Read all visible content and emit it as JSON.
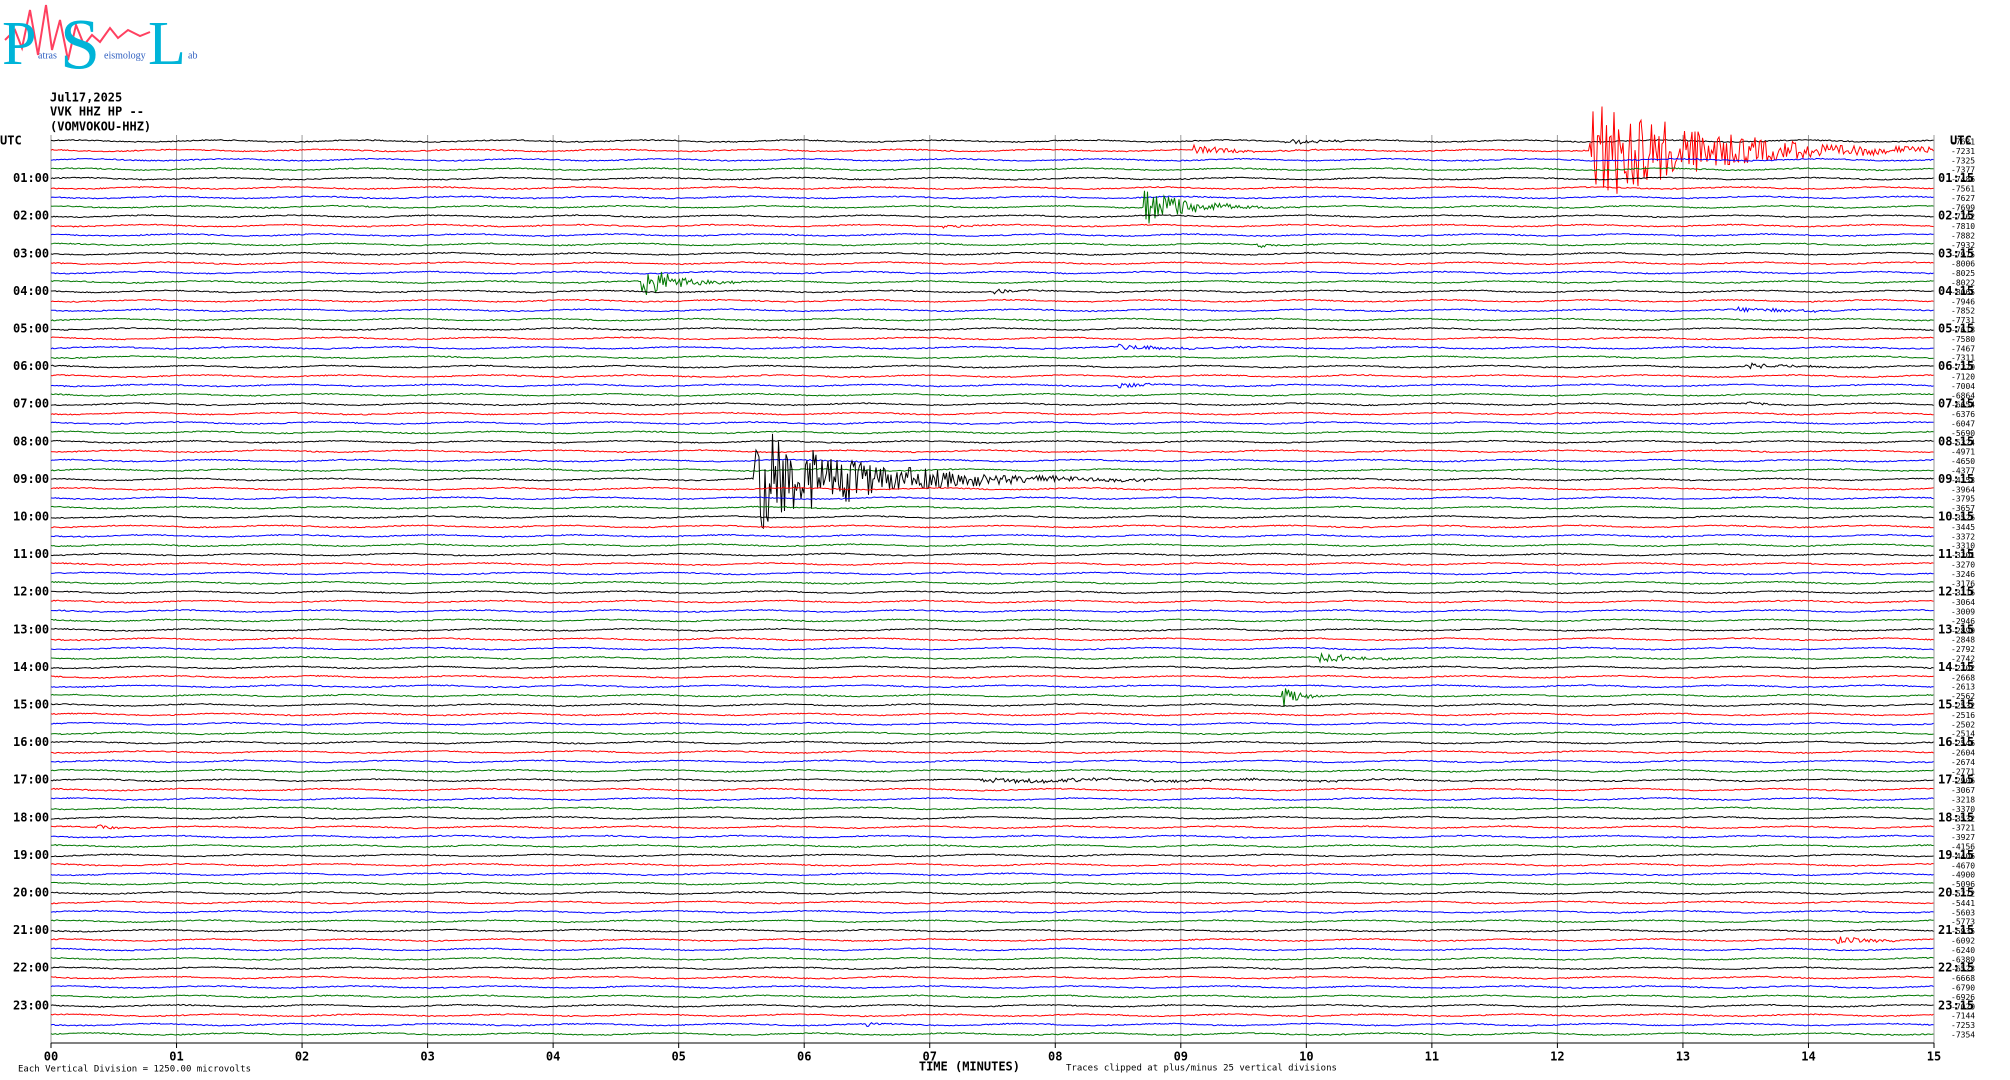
{
  "chart_data": {
    "type": "helicorder",
    "logo": {
      "letters": [
        "P",
        "S",
        "L"
      ],
      "words": [
        "atras",
        "eismology",
        "ab"
      ]
    },
    "title_lines": [
      "Jul17,2025",
      "VVK HHZ HP --",
      "(VOMVOKOU-HHZ)"
    ],
    "left_labels": [
      "UTC",
      "01:00",
      "02:00",
      "03:00",
      "04:00",
      "05:00",
      "06:00",
      "07:00",
      "08:00",
      "09:00",
      "10:00",
      "11:00",
      "12:00",
      "13:00",
      "14:00",
      "15:00",
      "16:00",
      "17:00",
      "18:00",
      "19:00",
      "20:00",
      "21:00",
      "22:00",
      "23:00"
    ],
    "right_labels": [
      "UTC",
      "01:15",
      "02:15",
      "03:15",
      "04:15",
      "05:15",
      "06:15",
      "07:15",
      "08:15",
      "09:15",
      "10:15",
      "11:15",
      "12:15",
      "13:15",
      "14:15",
      "15:15",
      "16:15",
      "17:15",
      "18:15",
      "19:15",
      "20:15",
      "21:15",
      "22:15",
      "23:15"
    ],
    "row_values": [
      -7631,
      -7231,
      -7325,
      -7377,
      -7486,
      -7561,
      -7627,
      -7699,
      -7762,
      -7810,
      -7882,
      -7932,
      -7975,
      -8006,
      -8025,
      -8022,
      -8065,
      -7946,
      -7852,
      -7731,
      -7618,
      -7580,
      -7467,
      -7311,
      -7220,
      -7120,
      -7004,
      -6864,
      -6654,
      -6376,
      -6047,
      -5690,
      -5324,
      -4971,
      -4650,
      -4377,
      -4153,
      -3964,
      -3795,
      -3657,
      -3526,
      -3445,
      -3372,
      -3310,
      -3201,
      -3270,
      -3246,
      -3176,
      -3116,
      -3064,
      -3009,
      -2946,
      -2899,
      -2848,
      -2792,
      -2742,
      -2702,
      -2668,
      -2613,
      -2562,
      -2532,
      -2516,
      -2502,
      -2514,
      -2546,
      -2604,
      -2674,
      -2771,
      -2906,
      -3067,
      -3218,
      -3370,
      -3532,
      -3721,
      -3927,
      -4156,
      -4406,
      -4670,
      -4900,
      -5096,
      -5272,
      -5441,
      -5603,
      -5773,
      -5935,
      -6092,
      -6240,
      -6389,
      -6523,
      -6668,
      -6790,
      -6926,
      -7020,
      -7144,
      -7253,
      -7354
    ],
    "trace_colors": [
      "#000000",
      "#ff0000",
      "#0000ff",
      "#007700"
    ],
    "xlabel": "TIME (MINUTES)",
    "xlim": [
      0,
      15
    ],
    "xticks": [
      {
        "value": 0,
        "label": "00"
      },
      {
        "value": 1,
        "label": "01"
      },
      {
        "value": 2,
        "label": "02"
      },
      {
        "value": 3,
        "label": "03"
      },
      {
        "value": 4,
        "label": "04"
      },
      {
        "value": 5,
        "label": "05"
      },
      {
        "value": 6,
        "label": "06"
      },
      {
        "value": 7,
        "label": "07"
      },
      {
        "value": 8,
        "label": "08"
      },
      {
        "value": 9,
        "label": "09"
      },
      10,
      11,
      12,
      13,
      14,
      15
    ],
    "scale_note": "Each Vertical Division = 1250.00 microvolts",
    "clip_note": "Traces clipped at plus/minus 25 vertical divisions",
    "grid": true
  }
}
